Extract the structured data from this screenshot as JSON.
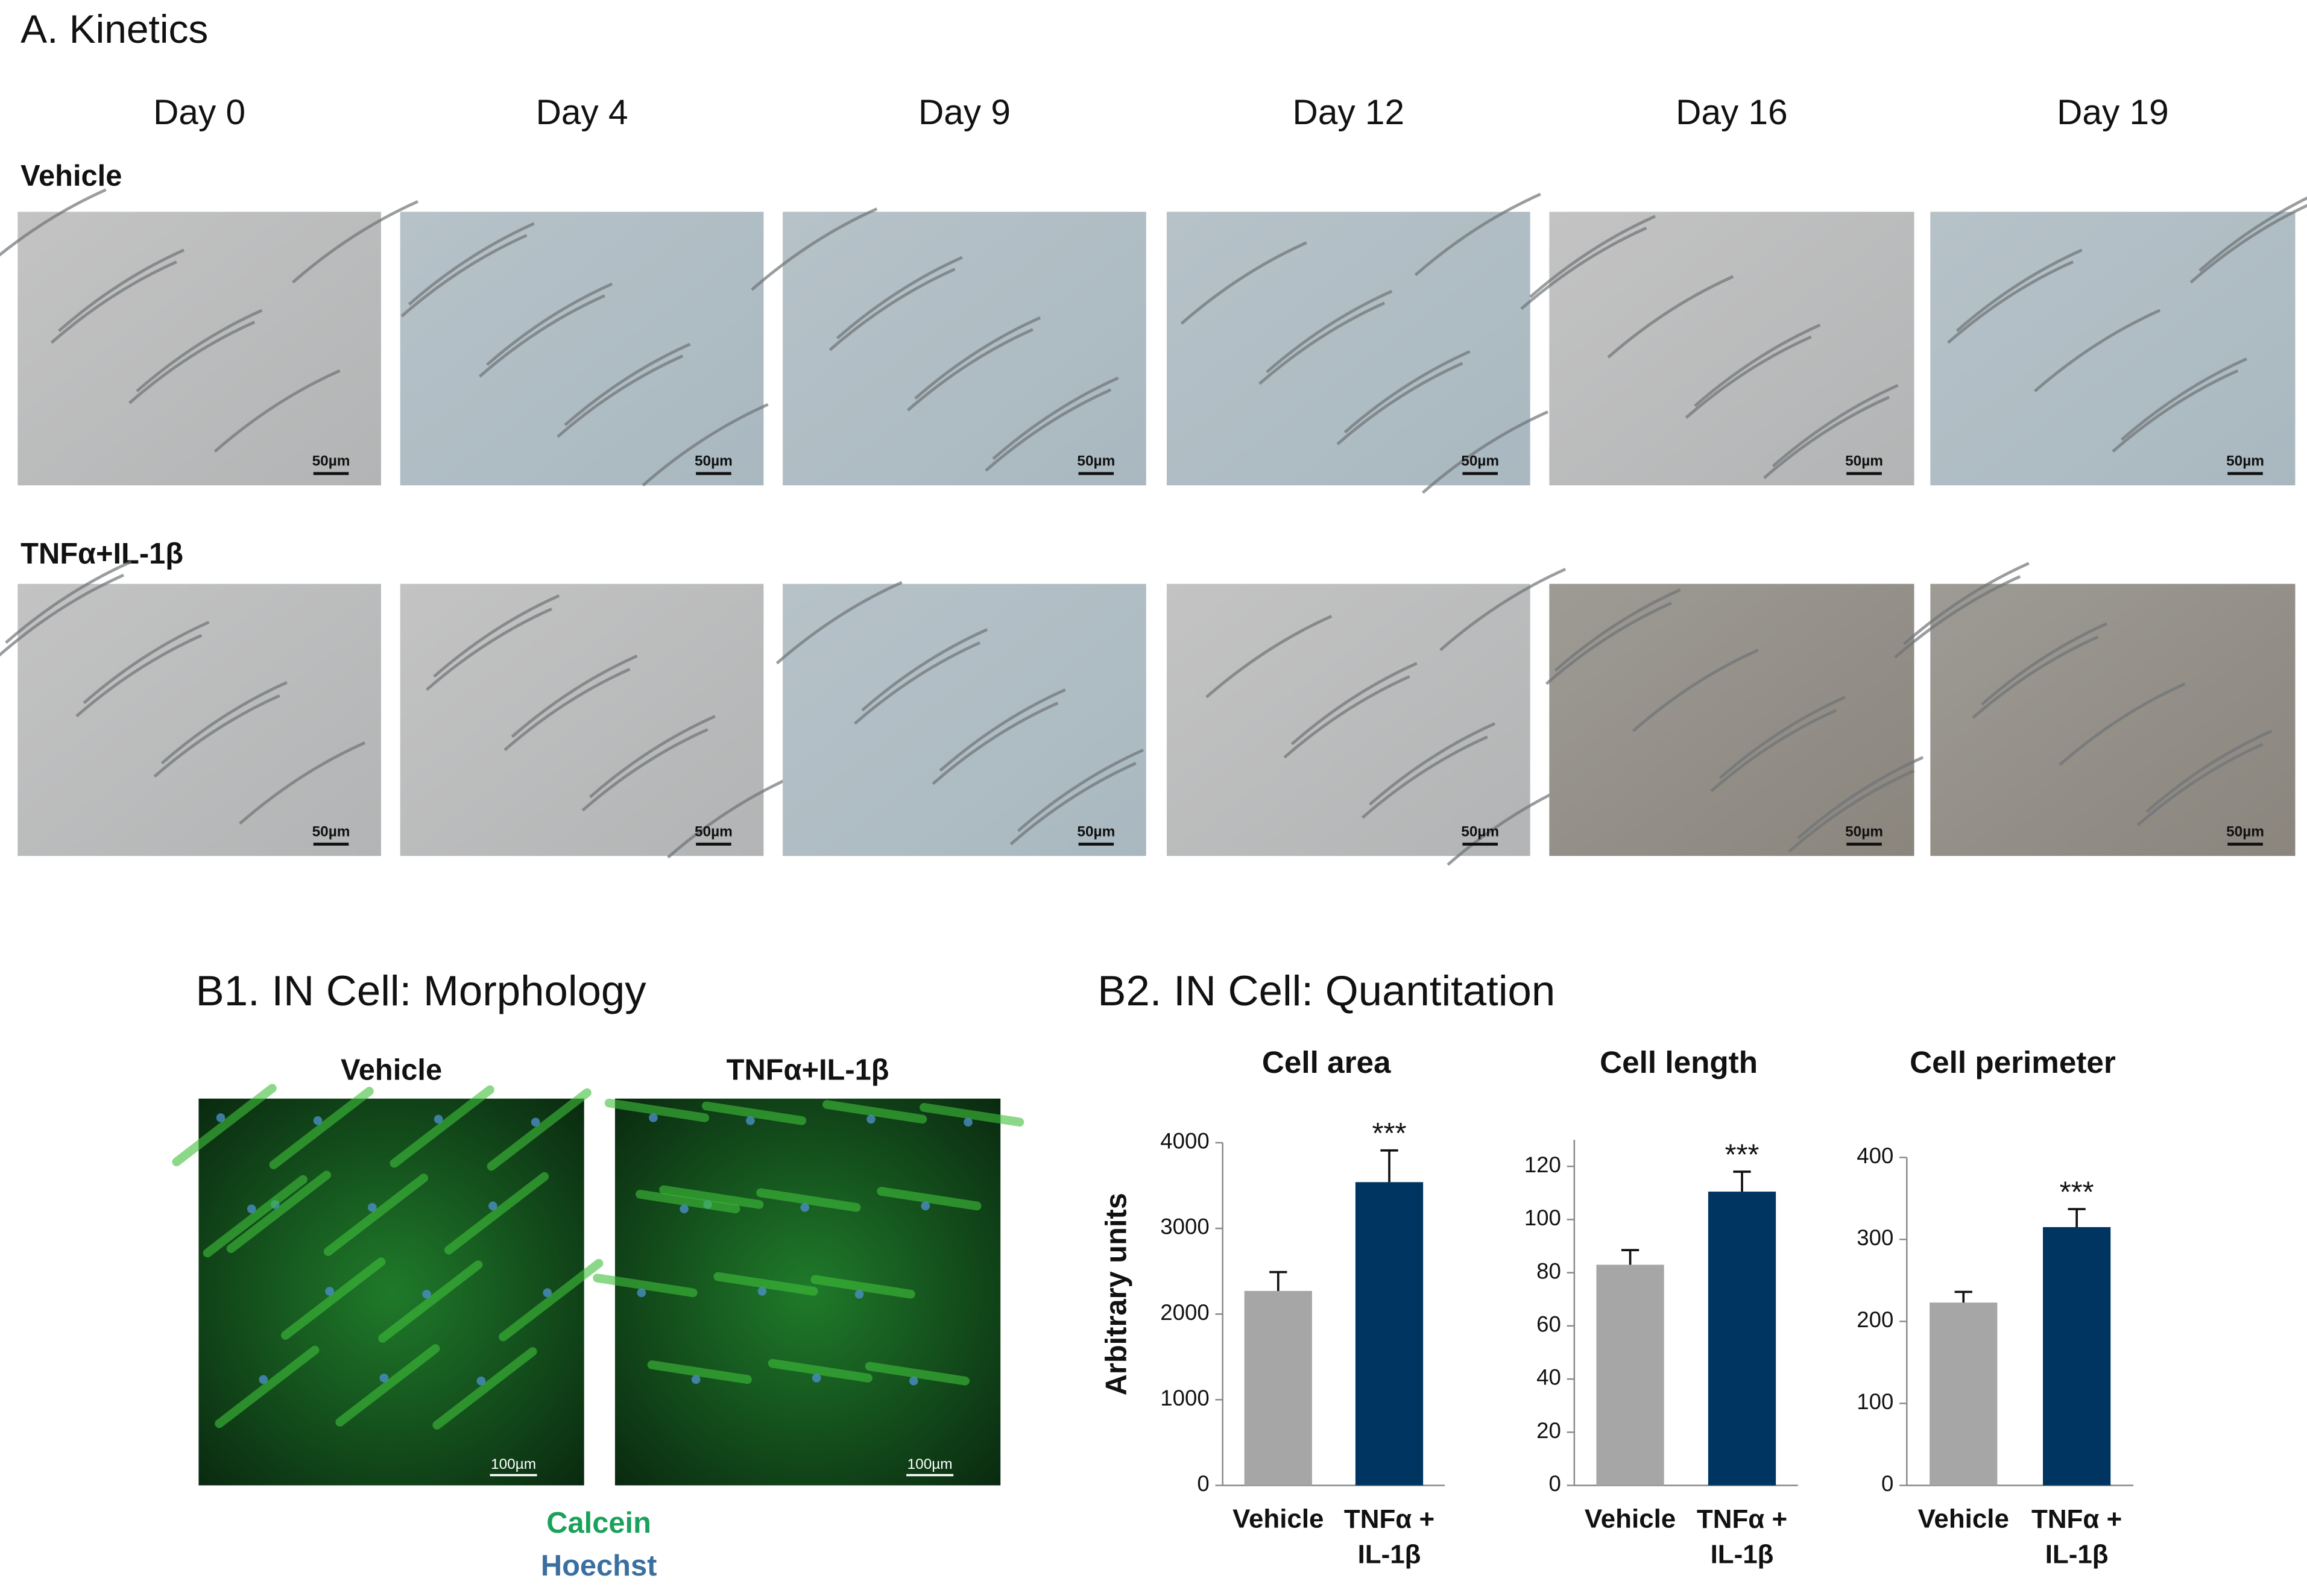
{
  "panel_a": {
    "title": "A. Kinetics",
    "days": [
      "Day 0",
      "Day 4",
      "Day 9",
      "Day 12",
      "Day 16",
      "Day 19"
    ],
    "rows": [
      "Vehicle",
      "TNFα+IL-1β"
    ],
    "scale_bar": "50µm"
  },
  "panel_b1": {
    "title": "B1. IN Cell: Morphology",
    "columns": [
      "Vehicle",
      "TNFα+IL-1β"
    ],
    "scale_bar": "100µm",
    "stains": [
      "Calcein",
      "Hoechst"
    ]
  },
  "panel_b2": {
    "title": "B2. IN Cell: Quantitation",
    "ylabel": "Arbitrary units"
  },
  "chart_data": [
    {
      "type": "bar",
      "title": "Cell area",
      "categories": [
        "Vehicle",
        "TNFα + IL-1β"
      ],
      "values": [
        2270,
        3540
      ],
      "errors": [
        220,
        370
      ],
      "colors": [
        "#a6a6a6",
        "#003561"
      ],
      "significance": "***",
      "ylim": [
        0,
        4000
      ],
      "yticks": [
        0,
        1000,
        2000,
        3000,
        4000
      ]
    },
    {
      "type": "bar",
      "title": "Cell length",
      "categories": [
        "Vehicle",
        "TNFα + IL-1β"
      ],
      "values": [
        83,
        110.5
      ],
      "errors": [
        5.5,
        7.5
      ],
      "colors": [
        "#a6a6a6",
        "#003561"
      ],
      "significance": "***",
      "ylim": [
        0,
        130
      ],
      "yticks": [
        0,
        20,
        40,
        60,
        80,
        100,
        120
      ]
    },
    {
      "type": "bar",
      "title": "Cell perimeter",
      "categories": [
        "Vehicle",
        "TNFα + IL-1β"
      ],
      "values": [
        223,
        315
      ],
      "errors": [
        13,
        22
      ],
      "colors": [
        "#a6a6a6",
        "#003561"
      ],
      "significance": "***",
      "ylim": [
        0,
        400
      ],
      "yticks": [
        0,
        100,
        200,
        300,
        400
      ]
    }
  ]
}
